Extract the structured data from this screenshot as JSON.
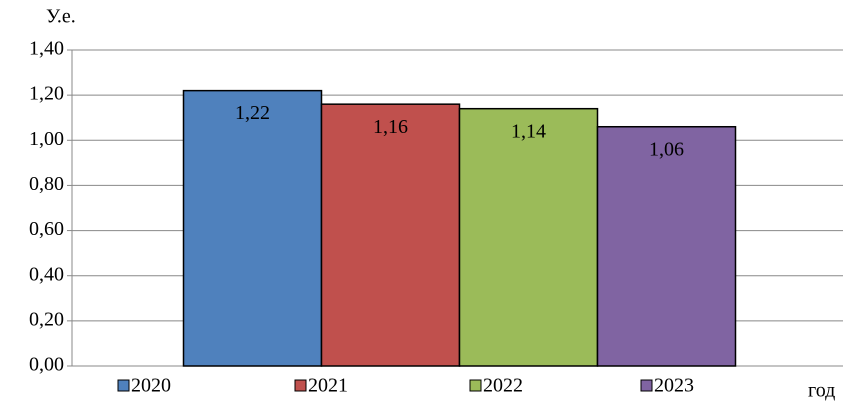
{
  "chart_data": {
    "type": "bar",
    "y_label": "У.е.",
    "x_label": "год",
    "categories": [
      null
    ],
    "series": [
      {
        "name": "2020",
        "color": "#4f81bd",
        "values": [
          1.22
        ],
        "value_labels": [
          "1,22"
        ]
      },
      {
        "name": "2021",
        "color": "#c0504d",
        "values": [
          1.16
        ],
        "value_labels": [
          "1,16"
        ]
      },
      {
        "name": "2022",
        "color": "#9bbb59",
        "values": [
          1.14
        ],
        "value_labels": [
          "1,14"
        ]
      },
      {
        "name": "2023",
        "color": "#8064a2",
        "values": [
          1.06
        ],
        "value_labels": [
          "1,06"
        ]
      }
    ],
    "ylim": [
      0,
      1.4
    ],
    "yticks": [
      {
        "value": 0,
        "label": "0,00"
      },
      {
        "value": 0.2,
        "label": "0,20"
      },
      {
        "value": 0.4,
        "label": "0,40"
      },
      {
        "value": 0.6,
        "label": "0,60"
      },
      {
        "value": 0.8,
        "label": "0,80"
      },
      {
        "value": 1.0,
        "label": "1,00"
      },
      {
        "value": 1.2,
        "label": "1,20"
      },
      {
        "value": 1.4,
        "label": "1,40"
      }
    ],
    "grid": true,
    "legend": "bottom"
  }
}
